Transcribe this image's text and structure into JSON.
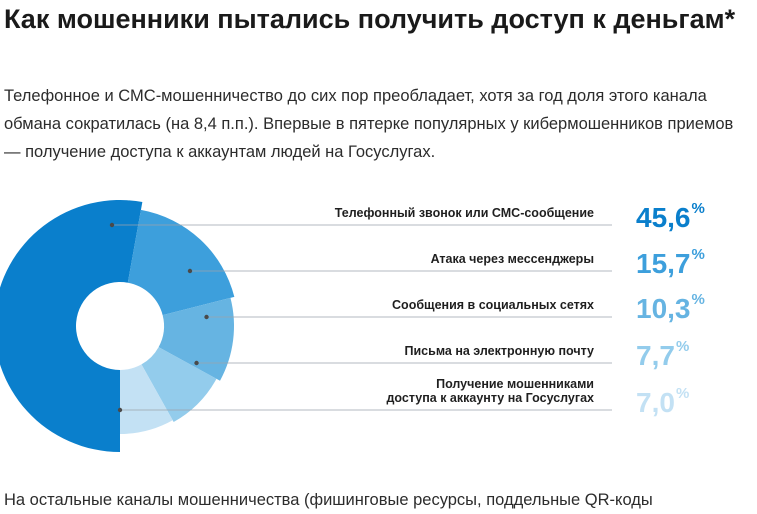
{
  "title": "Как мошенники пытались получить доступ к деньгам*",
  "subtitle": "Телефонное и СМС-мошенничество до сих пор преобладает, хотя за год доля этого канала обмана сократилась (на 8,4 п.п.). Впервые в пятерке популярных у кибермошенников приемов — получение доступа к аккаунтам людей на Госуслугах.",
  "footer": "На остальные каналы мошенничества (фишинговые ресурсы, поддельные QR-коды",
  "chart_data": {
    "type": "pie",
    "unit": "%",
    "categories": [
      "Телефонный звонок или СМС-сообщение",
      "Атака через мессенджеры",
      "Сообщения в социальных сетях",
      "Письма на электронную почту",
      "Получение мошенниками доступа к аккаунту на Госуслугах"
    ],
    "label_lines": [
      [
        "Телефонный звонок или СМС-сообщение"
      ],
      [
        "Атака через мессенджеры"
      ],
      [
        "Сообщения в социальных сетях"
      ],
      [
        "Письма на электронную почту"
      ],
      [
        "Получение мошенниками",
        "доступа к аккаунту на Госуслугах"
      ]
    ],
    "values": [
      45.6,
      15.7,
      10.3,
      7.7,
      7.0
    ],
    "value_labels": [
      "45,6",
      "15,7",
      "10,3",
      "7,7",
      "7,0"
    ],
    "colors": [
      "#0a7fcc",
      "#3d9fdc",
      "#66b4e2",
      "#93ccec",
      "#c3e1f4"
    ]
  }
}
